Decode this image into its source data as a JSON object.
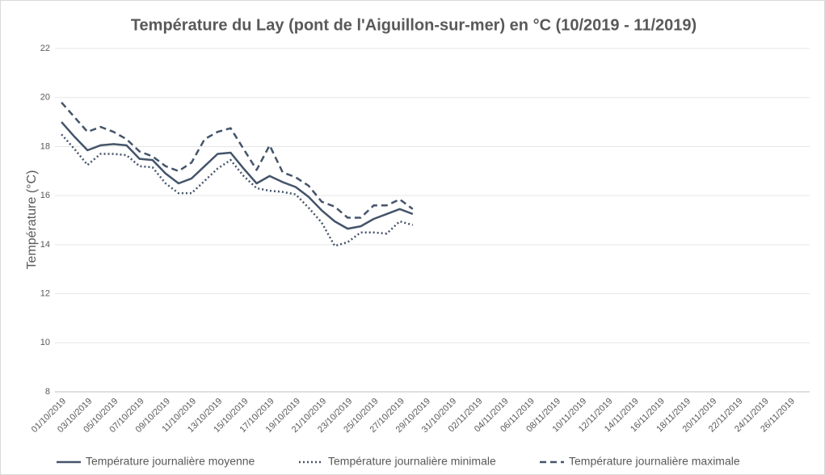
{
  "chart_data": {
    "type": "line",
    "title": "Température  du Lay (pont de l'Aiguillon-sur-mer) en °C (10/2019 - 11/2019)",
    "y_label": "Température (°C)",
    "categories": [
      "01/10/2019",
      null,
      "03/10/2019",
      null,
      "05/10/2019",
      null,
      "07/10/2019",
      null,
      "09/10/2019",
      null,
      "11/10/2019",
      null,
      "13/10/2019",
      null,
      "15/10/2019",
      null,
      "17/10/2019",
      null,
      "19/10/2019",
      null,
      "21/10/2019",
      null,
      "23/10/2019",
      null,
      "25/10/2019",
      null,
      "27/10/2019",
      null,
      "29/10/2019",
      null,
      "31/10/2019",
      null,
      "02/11/2019",
      null,
      "04/11/2019",
      null,
      "06/11/2019",
      null,
      "08/11/2019",
      null,
      "10/11/2019",
      null,
      "12/11/2019",
      null,
      "14/11/2019",
      null,
      "16/11/2019",
      null,
      "18/11/2019",
      null,
      "20/11/2019",
      null,
      "22/11/2019",
      null,
      "24/11/2019",
      null,
      "26/11/2019",
      null
    ],
    "series": [
      {
        "name": "Température journalière moyenne",
        "color": "#44546a",
        "dash": "solid",
        "values": [
          19.0,
          18.4,
          17.85,
          18.05,
          18.1,
          18.05,
          17.5,
          17.45,
          16.9,
          16.5,
          16.7,
          17.2,
          17.7,
          17.75,
          17.1,
          16.5,
          16.8,
          16.55,
          16.35,
          15.95,
          15.4,
          14.95,
          14.65,
          14.75,
          15.05,
          15.25,
          15.45,
          15.25,
          null,
          null,
          null,
          null,
          null,
          null,
          null,
          null,
          null,
          null,
          null,
          null,
          null,
          null,
          null,
          null,
          null,
          null,
          null,
          null,
          null,
          null,
          null,
          null,
          null,
          null,
          null,
          null,
          null,
          null
        ]
      },
      {
        "name": "Température journalière minimale",
        "color": "#44546a",
        "dash": "dotted",
        "values": [
          18.5,
          17.9,
          17.25,
          17.7,
          17.7,
          17.65,
          17.2,
          17.15,
          16.5,
          16.1,
          16.1,
          16.6,
          17.1,
          17.45,
          16.8,
          16.3,
          16.2,
          16.15,
          16.05,
          15.5,
          14.9,
          13.95,
          14.1,
          14.5,
          14.5,
          14.45,
          14.95,
          14.8,
          null,
          null,
          null,
          null,
          null,
          null,
          null,
          null,
          null,
          null,
          null,
          null,
          null,
          null,
          null,
          null,
          null,
          null,
          null,
          null,
          null,
          null,
          null,
          null,
          null,
          null,
          null,
          null,
          null,
          null
        ]
      },
      {
        "name": "Température journalière maximale",
        "color": "#44546a",
        "dash": "dashed",
        "values": [
          19.8,
          19.2,
          18.6,
          18.8,
          18.6,
          18.3,
          17.8,
          17.6,
          17.2,
          17.0,
          17.35,
          18.3,
          18.6,
          18.75,
          17.9,
          17.05,
          18.05,
          16.95,
          16.75,
          16.4,
          15.75,
          15.55,
          15.1,
          15.1,
          15.6,
          15.6,
          15.85,
          15.45,
          null,
          null,
          null,
          null,
          null,
          null,
          null,
          null,
          null,
          null,
          null,
          null,
          null,
          null,
          null,
          null,
          null,
          null,
          null,
          null,
          null,
          null,
          null,
          null,
          null,
          null,
          null,
          null,
          null,
          null
        ]
      }
    ],
    "ylim": [
      8,
      22
    ],
    "yticks": [
      8,
      10,
      12,
      14,
      16,
      18,
      20,
      22
    ],
    "grid": true,
    "legend": "bottom"
  }
}
